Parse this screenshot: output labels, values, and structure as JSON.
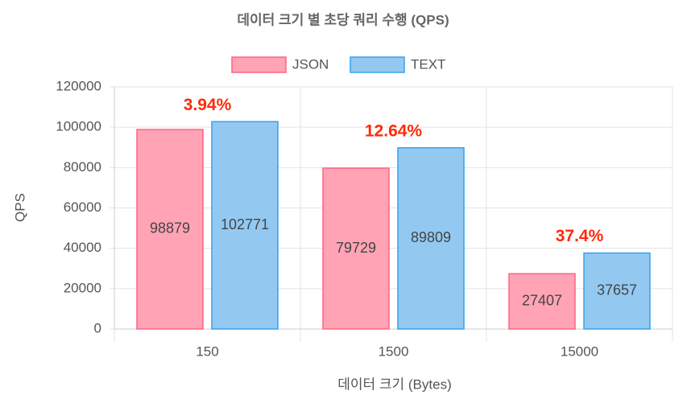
{
  "chart_data": {
    "type": "bar",
    "title": "데이터 크기 별 초당 쿼리 수행 (QPS)",
    "x_label": "데이터 크기 (Bytes)",
    "y_label": "QPS",
    "categories": [
      "150",
      "1500",
      "15000"
    ],
    "series": [
      {
        "name": "JSON",
        "color": "#ff6384",
        "fill": "#ffa3b5",
        "values": [
          98879,
          79729,
          27407
        ]
      },
      {
        "name": "TEXT",
        "color": "#36a2eb",
        "fill": "#93c9f1",
        "values": [
          102771,
          89809,
          37657
        ]
      }
    ],
    "annotations": [
      "3.94%",
      "12.64%",
      "37.4%"
    ],
    "annotation_color": "#ff2a0a",
    "ylim": [
      0,
      120000
    ],
    "yticks": [
      0,
      20000,
      40000,
      60000,
      80000,
      100000,
      120000
    ],
    "grid": true
  }
}
